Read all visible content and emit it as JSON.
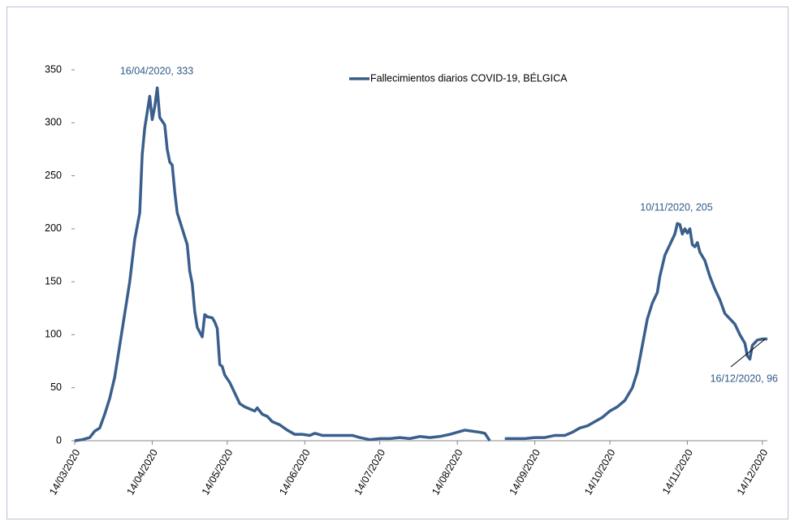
{
  "chart_data": {
    "type": "line",
    "series": [
      {
        "name": "Fallecimientos diarios COVID-19, BÉLGICA",
        "color": "#3a5f8c",
        "x": [
          "14/03/2020",
          "17/03/2020",
          "20/03/2020",
          "22/03/2020",
          "24/03/2020",
          "26/03/2020",
          "28/03/2020",
          "30/03/2020",
          "01/04/2020",
          "03/04/2020",
          "05/04/2020",
          "07/04/2020",
          "09/04/2020",
          "10/04/2020",
          "11/04/2020",
          "13/04/2020",
          "14/04/2020",
          "15/04/2020",
          "16/04/2020",
          "17/04/2020",
          "19/04/2020",
          "20/04/2020",
          "21/04/2020",
          "22/04/2020",
          "23/04/2020",
          "24/04/2020",
          "26/04/2020",
          "28/04/2020",
          "29/04/2020",
          "30/04/2020",
          "01/05/2020",
          "02/05/2020",
          "04/05/2020",
          "05/05/2020",
          "06/05/2020",
          "08/05/2020",
          "09/05/2020",
          "10/05/2020",
          "11/05/2020",
          "12/05/2020",
          "13/05/2020",
          "15/05/2020",
          "17/05/2020",
          "19/05/2020",
          "21/05/2020",
          "23/05/2020",
          "25/05/2020",
          "26/05/2020",
          "28/05/2020",
          "30/05/2020",
          "01/06/2020",
          "04/06/2020",
          "07/06/2020",
          "10/06/2020",
          "13/06/2020",
          "16/06/2020",
          "18/06/2020",
          "21/06/2020",
          "25/06/2020",
          "29/06/2020",
          "03/07/2020",
          "06/07/2020",
          "10/07/2020",
          "14/07/2020",
          "18/07/2020",
          "22/07/2020",
          "26/07/2020",
          "30/07/2020",
          "03/08/2020",
          "07/08/2020",
          "11/08/2020",
          "14/08/2020",
          "17/08/2020",
          "20/08/2020",
          "23/08/2020",
          "25/08/2020",
          "27/08/2020",
          "28/08/2020",
          "02/09/2020",
          "06/09/2020",
          "10/09/2020",
          "14/09/2020",
          "18/09/2020",
          "22/09/2020",
          "26/09/2020",
          "29/09/2020",
          "02/10/2020",
          "05/10/2020",
          "08/10/2020",
          "11/10/2020",
          "14/10/2020",
          "17/10/2020",
          "20/10/2020",
          "23/10/2020",
          "25/10/2020",
          "27/10/2020",
          "29/10/2020",
          "31/10/2020",
          "02/11/2020",
          "03/11/2020",
          "05/11/2020",
          "07/11/2020",
          "09/11/2020",
          "10/11/2020",
          "11/11/2020",
          "12/11/2020",
          "13/11/2020",
          "14/11/2020",
          "15/11/2020",
          "16/11/2020",
          "17/11/2020",
          "18/11/2020",
          "19/11/2020",
          "21/11/2020",
          "23/11/2020",
          "25/11/2020",
          "27/11/2020",
          "29/11/2020",
          "01/12/2020",
          "03/12/2020",
          "05/12/2020",
          "07/12/2020",
          "08/12/2020",
          "09/12/2020",
          "10/12/2020",
          "12/12/2020",
          "14/12/2020",
          "16/12/2020"
        ],
        "values": [
          0,
          1,
          3,
          9,
          12,
          25,
          40,
          60,
          90,
          120,
          150,
          190,
          215,
          270,
          295,
          325,
          303,
          315,
          333,
          305,
          298,
          275,
          263,
          260,
          235,
          215,
          200,
          185,
          160,
          148,
          122,
          107,
          98,
          119,
          117,
          116,
          112,
          106,
          72,
          70,
          62,
          55,
          45,
          35,
          32,
          30,
          28,
          31,
          25,
          23,
          18,
          15,
          10,
          6,
          6,
          5,
          7,
          5,
          5,
          5,
          5,
          3,
          1,
          2,
          2,
          3,
          2,
          4,
          3,
          4,
          6,
          8,
          10,
          9,
          8,
          7,
          0,
          null,
          2,
          2,
          2,
          3,
          3,
          5,
          5,
          8,
          12,
          14,
          18,
          22,
          28,
          32,
          38,
          50,
          65,
          90,
          115,
          130,
          140,
          155,
          175,
          185,
          195,
          205,
          204,
          195,
          200,
          196,
          200,
          185,
          183,
          187,
          178,
          170,
          155,
          143,
          133,
          120,
          115,
          110,
          100,
          92,
          80,
          77,
          90,
          95,
          96,
          96
        ]
      }
    ],
    "annotations": [
      "16/04/2020, 333",
      "10/11/2020, 205",
      "16/12/2020, 96"
    ],
    "xlim": [
      "14/03/2020",
      "16/12/2020"
    ],
    "xticks": [
      "14/03/2020",
      "14/04/2020",
      "14/05/2020",
      "14/06/2020",
      "14/07/2020",
      "14/08/2020",
      "14/09/2020",
      "14/10/2020",
      "14/11/2020",
      "14/12/2020"
    ],
    "ylim": [
      0,
      350
    ],
    "yticks": [
      0,
      50,
      100,
      150,
      200,
      250,
      300,
      350
    ],
    "grid": false,
    "legend": "top"
  }
}
